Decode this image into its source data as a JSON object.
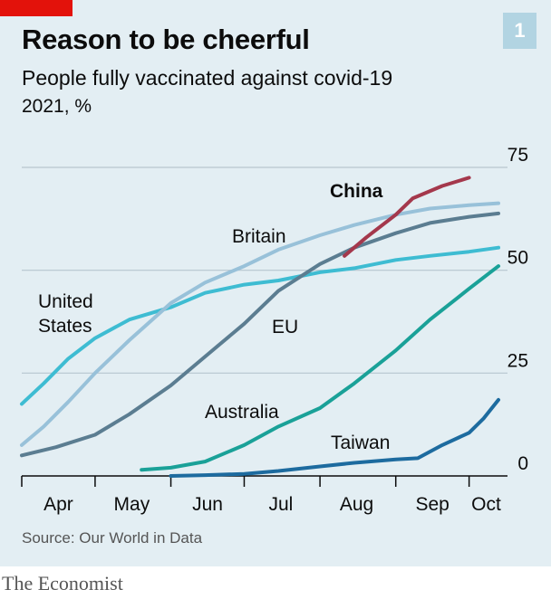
{
  "header": {
    "title": "Reason to be cheerful",
    "subtitle": "People fully vaccinated against covid-19",
    "unit": "2021, %",
    "chart_number": "1"
  },
  "footer": {
    "source": "Source: Our World in Data",
    "brand": "The Economist"
  },
  "colors": {
    "panel": "#e3eef3",
    "accent_red": "#e3120b",
    "badge": "#b2d4e2"
  },
  "chart_data": {
    "type": "line",
    "title": "Reason to be cheerful",
    "subtitle": "People fully vaccinated against covid-19",
    "ylabel": "2021, %",
    "xlabel": "",
    "ylim": [
      0,
      75
    ],
    "yticks": [
      0,
      25,
      50,
      75
    ],
    "grid": true,
    "x_domain": [
      "2021-04-01",
      "2021-10-15"
    ],
    "month_labels": [
      {
        "label": "Apr",
        "date": "2021-04-16"
      },
      {
        "label": "May",
        "date": "2021-05-16"
      },
      {
        "label": "Jun",
        "date": "2021-06-16"
      },
      {
        "label": "Jul",
        "date": "2021-07-16"
      },
      {
        "label": "Aug",
        "date": "2021-08-16"
      },
      {
        "label": "Sep",
        "date": "2021-09-16"
      },
      {
        "label": "Oct",
        "date": "2021-10-08"
      }
    ],
    "month_ticks": [
      "2021-05-01",
      "2021-06-01",
      "2021-07-01",
      "2021-08-01",
      "2021-09-01",
      "2021-10-01"
    ],
    "series": [
      {
        "name": "United States",
        "label_lines": [
          "United",
          "States"
        ],
        "color": "#3ebcd2",
        "bold": false,
        "points": [
          [
            "2021-04-01",
            17.5
          ],
          [
            "2021-04-10",
            22.5
          ],
          [
            "2021-04-20",
            28.5
          ],
          [
            "2021-05-01",
            33.5
          ],
          [
            "2021-05-15",
            38
          ],
          [
            "2021-06-01",
            41
          ],
          [
            "2021-06-15",
            44.5
          ],
          [
            "2021-07-01",
            46.5
          ],
          [
            "2021-07-15",
            47.5
          ],
          [
            "2021-08-01",
            49.5
          ],
          [
            "2021-08-15",
            50.5
          ],
          [
            "2021-09-01",
            52.5
          ],
          [
            "2021-09-15",
            53.5
          ],
          [
            "2021-10-01",
            54.5
          ],
          [
            "2021-10-13",
            55.5
          ]
        ]
      },
      {
        "name": "Britain",
        "label_lines": [
          "Britain"
        ],
        "color": "#98c1d9",
        "bold": false,
        "points": [
          [
            "2021-04-01",
            7.5
          ],
          [
            "2021-04-10",
            12
          ],
          [
            "2021-04-20",
            18
          ],
          [
            "2021-05-01",
            25
          ],
          [
            "2021-05-15",
            33
          ],
          [
            "2021-06-01",
            42
          ],
          [
            "2021-06-15",
            47
          ],
          [
            "2021-07-01",
            51
          ],
          [
            "2021-07-15",
            55
          ],
          [
            "2021-08-01",
            58.5
          ],
          [
            "2021-08-15",
            61
          ],
          [
            "2021-09-01",
            63.5
          ],
          [
            "2021-09-15",
            65
          ],
          [
            "2021-10-01",
            65.8
          ],
          [
            "2021-10-13",
            66.3
          ]
        ]
      },
      {
        "name": "EU",
        "label_lines": [
          "EU"
        ],
        "color": "#5b7d91",
        "bold": false,
        "points": [
          [
            "2021-04-01",
            5
          ],
          [
            "2021-04-15",
            7
          ],
          [
            "2021-05-01",
            10
          ],
          [
            "2021-05-15",
            15
          ],
          [
            "2021-06-01",
            22
          ],
          [
            "2021-06-15",
            29
          ],
          [
            "2021-07-01",
            37
          ],
          [
            "2021-07-15",
            45
          ],
          [
            "2021-08-01",
            51.5
          ],
          [
            "2021-08-15",
            55.5
          ],
          [
            "2021-09-01",
            59
          ],
          [
            "2021-09-15",
            61.5
          ],
          [
            "2021-10-01",
            63
          ],
          [
            "2021-10-13",
            63.8
          ]
        ]
      },
      {
        "name": "China",
        "label_lines": [
          "China"
        ],
        "color": "#a4384c",
        "bold": true,
        "points": [
          [
            "2021-08-11",
            53.5
          ],
          [
            "2021-08-20",
            58
          ],
          [
            "2021-09-01",
            63.5
          ],
          [
            "2021-09-08",
            67.5
          ],
          [
            "2021-09-20",
            70.5
          ],
          [
            "2021-10-01",
            72.5
          ]
        ]
      },
      {
        "name": "Australia",
        "label_lines": [
          "Australia"
        ],
        "color": "#1aa198",
        "bold": false,
        "points": [
          [
            "2021-05-20",
            1.5
          ],
          [
            "2021-06-01",
            2
          ],
          [
            "2021-06-15",
            3.5
          ],
          [
            "2021-07-01",
            7.5
          ],
          [
            "2021-07-15",
            12
          ],
          [
            "2021-08-01",
            16.5
          ],
          [
            "2021-08-15",
            22.5
          ],
          [
            "2021-09-01",
            30.5
          ],
          [
            "2021-09-15",
            38
          ],
          [
            "2021-10-01",
            45.5
          ],
          [
            "2021-10-13",
            51
          ]
        ]
      },
      {
        "name": "Taiwan",
        "label_lines": [
          "Taiwan"
        ],
        "color": "#1d6b9f",
        "bold": false,
        "points": [
          [
            "2021-06-01",
            0
          ],
          [
            "2021-06-15",
            0.2
          ],
          [
            "2021-07-01",
            0.5
          ],
          [
            "2021-07-15",
            1.2
          ],
          [
            "2021-08-01",
            2.3
          ],
          [
            "2021-08-15",
            3.2
          ],
          [
            "2021-09-01",
            4
          ],
          [
            "2021-09-10",
            4.3
          ],
          [
            "2021-09-20",
            7.5
          ],
          [
            "2021-10-01",
            10.5
          ],
          [
            "2021-10-07",
            14
          ],
          [
            "2021-10-13",
            18.5
          ]
        ]
      }
    ]
  }
}
